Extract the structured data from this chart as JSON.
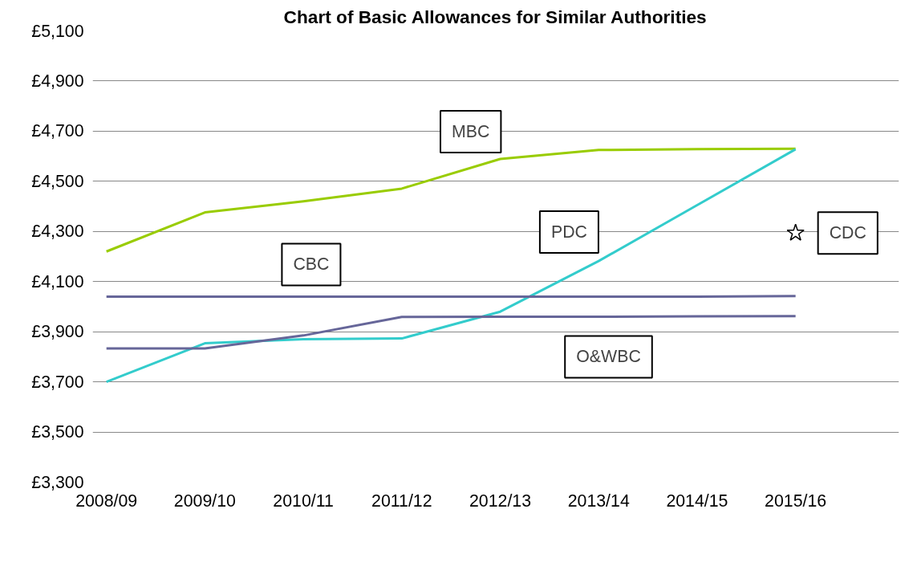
{
  "chart_data": {
    "type": "line",
    "title": "Chart of Basic Allowances for Similar Authorities",
    "categories": [
      "2008/09",
      "2009/10",
      "2010/11",
      "2011/12",
      "2012/13",
      "2013/14",
      "2014/15",
      "2015/16"
    ],
    "series": [
      {
        "name": "MBC",
        "color": "#99cc00",
        "values": [
          4220,
          4376,
          4420,
          4471,
          4589,
          4625,
          4628,
          4630
        ]
      },
      {
        "name": "PDC",
        "color": "#33cccc",
        "values": [
          3700,
          3854,
          3870,
          3873,
          3980,
          4182,
          4405,
          4628
        ]
      },
      {
        "name": "CBC",
        "color": "#666699",
        "values": [
          4040,
          4040,
          4040,
          4040,
          4040,
          4040,
          4040,
          4042
        ]
      },
      {
        "name": "O&WBC",
        "color": "#666699",
        "values": [
          3833,
          3833,
          3885,
          3959,
          3960,
          3960,
          3961,
          3962
        ]
      },
      {
        "type": "scatter",
        "name": "CDC",
        "marker": "star",
        "color": "#000000",
        "values": [
          null,
          null,
          null,
          null,
          null,
          null,
          null,
          4294
        ]
      }
    ],
    "ylim": [
      3300,
      5100
    ],
    "yticks": [
      {
        "value": 3300,
        "label": "£3,300"
      },
      {
        "value": 3500,
        "label": "£3,500"
      },
      {
        "value": 3700,
        "label": "£3,700"
      },
      {
        "value": 3900,
        "label": "£3,900"
      },
      {
        "value": 4100,
        "label": "£4,100"
      },
      {
        "value": 4300,
        "label": "£4,300"
      },
      {
        "value": 4500,
        "label": "£4,500"
      },
      {
        "value": 4700,
        "label": "£4,700"
      },
      {
        "value": 4900,
        "label": "£4,900"
      },
      {
        "value": 5100,
        "label": "£5,100"
      }
    ],
    "grid": "y",
    "marker": "none",
    "line_style": "solid"
  }
}
